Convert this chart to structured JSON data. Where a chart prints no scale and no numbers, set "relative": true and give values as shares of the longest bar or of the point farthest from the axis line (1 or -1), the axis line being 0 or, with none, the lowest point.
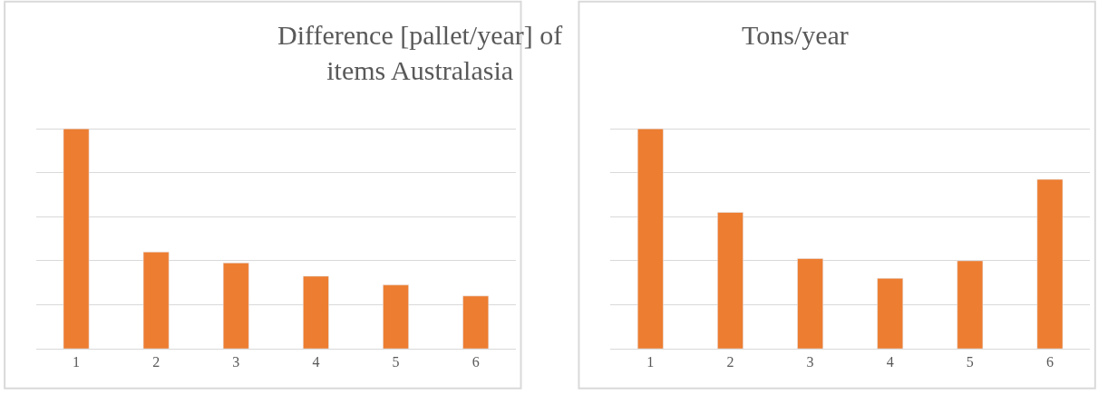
{
  "chart_data": [
    {
      "type": "bar",
      "title": "Difference [pallet/year] of\nitems Australasia",
      "categories": [
        "1",
        "2",
        "3",
        "4",
        "5",
        "6"
      ],
      "relative": true,
      "color": "#ed7d31",
      "grid": "y",
      "values": [
        1,
        0.44,
        0.39,
        0.33,
        0.29,
        0.24
      ]
    },
    {
      "type": "bar",
      "title": "Tons/year",
      "categories": [
        "1",
        "2",
        "3",
        "4",
        "5",
        "6"
      ],
      "relative": true,
      "color": "#ed7d31",
      "grid": "y",
      "values": [
        1,
        0.62,
        0.41,
        0.32,
        0.4,
        0.77
      ]
    }
  ]
}
